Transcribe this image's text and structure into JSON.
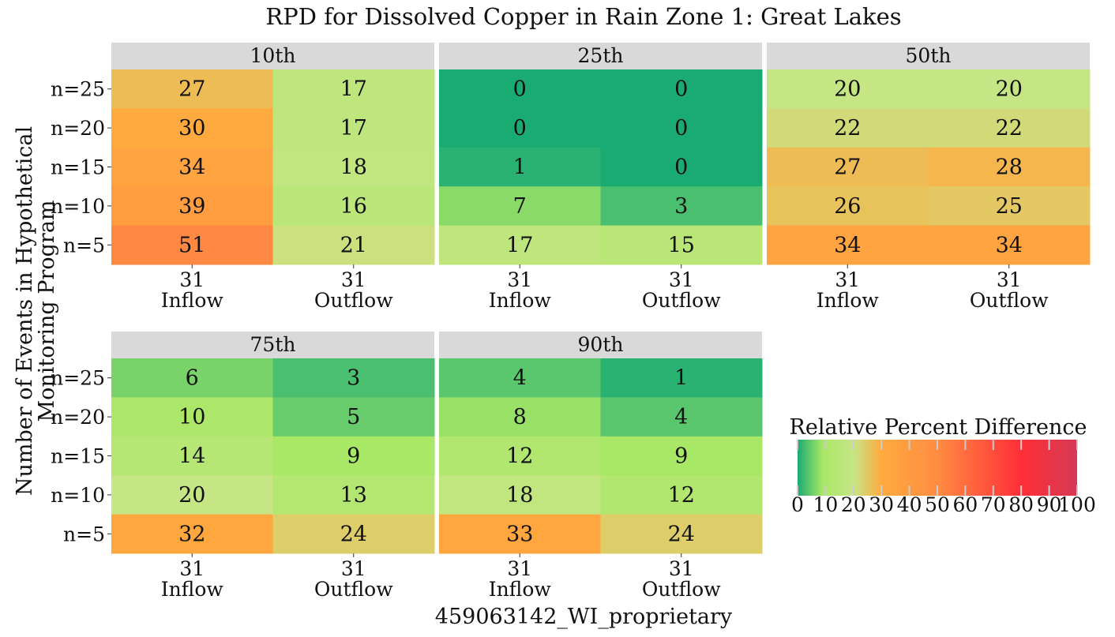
{
  "chart_data": {
    "type": "heatmap",
    "title": "RPD for Dissolved Copper in Rain Zone 1: Great Lakes",
    "xlabel": "459063142_WI_proprietary",
    "ylabel_line1": "Number of Events in Hypothetical",
    "ylabel_line2": "Monitoring Program",
    "x_categories": [
      {
        "count": "31",
        "name": "Inflow"
      },
      {
        "count": "31",
        "name": "Outflow"
      }
    ],
    "y_categories": [
      "n=25",
      "n=20",
      "n=15",
      "n=10",
      "n=5"
    ],
    "panels": [
      {
        "label": "10th",
        "values": [
          [
            27,
            17
          ],
          [
            30,
            17
          ],
          [
            34,
            18
          ],
          [
            39,
            16
          ],
          [
            51,
            21
          ]
        ]
      },
      {
        "label": "25th",
        "values": [
          [
            0,
            0
          ],
          [
            0,
            0
          ],
          [
            1,
            0
          ],
          [
            7,
            3
          ],
          [
            17,
            15
          ]
        ]
      },
      {
        "label": "50th",
        "values": [
          [
            20,
            20
          ],
          [
            22,
            22
          ],
          [
            27,
            28
          ],
          [
            26,
            25
          ],
          [
            34,
            34
          ]
        ]
      },
      {
        "label": "75th",
        "values": [
          [
            6,
            3
          ],
          [
            10,
            5
          ],
          [
            14,
            9
          ],
          [
            20,
            13
          ],
          [
            32,
            24
          ]
        ]
      },
      {
        "label": "90th",
        "values": [
          [
            4,
            1
          ],
          [
            8,
            4
          ],
          [
            12,
            9
          ],
          [
            18,
            12
          ],
          [
            33,
            24
          ]
        ]
      }
    ],
    "legend": {
      "title": "Relative Percent Difference",
      "ticks": [
        0,
        10,
        20,
        30,
        40,
        50,
        60,
        70,
        80,
        90,
        100
      ],
      "range": [
        0,
        100
      ]
    },
    "colors": {
      "scale": [
        "#1aab73",
        "#b5ea62",
        "#c6e686",
        "#ffaa3f",
        "#ff2e38",
        "#d43a55"
      ],
      "strip_background": "#d9d9d9"
    }
  }
}
